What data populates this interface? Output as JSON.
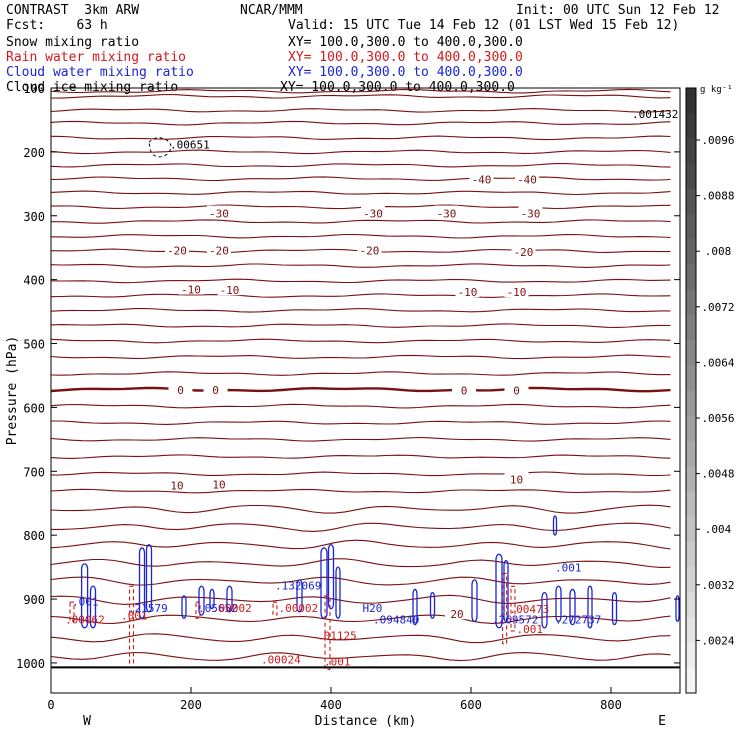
{
  "header": {
    "model": "CONTRAST  3km ARW",
    "source": "NCAR/MMM",
    "init": "Init: 00 UTC Sun 12 Feb 12",
    "fcst": "Fcst:    63 h",
    "valid": "Valid: 15 UTC Tue 14 Feb 12 (01 LST Wed 15 Feb 12)",
    "fields": [
      {
        "name": "Snow mixing ratio",
        "xy": "XY= 100.0,300.0 to 400.0,300.0",
        "color": "#000000"
      },
      {
        "name": "Rain water mixing ratio",
        "xy": "XY= 100.0,300.0 to 400.0,300.0",
        "color": "#d11a1a"
      },
      {
        "name": "Cloud water mixing ratio",
        "xy": "XY= 100.0,300.0 to 400.0,300.0",
        "color": "#1a25d6"
      },
      {
        "name": "Cloud ice mixing ratio",
        "xy": "XY= 100.0,300.0 to 400.0,300.0",
        "color": "#000000"
      }
    ]
  },
  "chart_data": {
    "type": "cross-section contour",
    "xlabel": "Distance (km)",
    "ylabel": "Pressure (hPa)",
    "x_ticks": [
      0,
      200,
      400,
      600,
      800
    ],
    "y_ticks": [
      100,
      200,
      300,
      400,
      500,
      600,
      700,
      800,
      900,
      1000
    ],
    "xlim": [
      0,
      895
    ],
    "ylim": [
      1045,
      100
    ],
    "x_end_labels": {
      "left": "W",
      "right": "E"
    },
    "colorbar": {
      "unit": "g kg⁻¹",
      "labels": [
        ".0096",
        ".0088",
        ".008",
        ".0072",
        ".0064",
        ".0056",
        ".0048",
        ".004",
        ".0032",
        ".0024"
      ]
    },
    "temperature_isotherm_labels": [
      {
        "text": "-40",
        "x": 615,
        "p": 242
      },
      {
        "text": "-40",
        "x": 680,
        "p": 242
      },
      {
        "text": "-30",
        "x": 240,
        "p": 295
      },
      {
        "text": "-30",
        "x": 460,
        "p": 295
      },
      {
        "text": "-30",
        "x": 565,
        "p": 295
      },
      {
        "text": "-30",
        "x": 685,
        "p": 295
      },
      {
        "text": "-20",
        "x": 180,
        "p": 353
      },
      {
        "text": "-20",
        "x": 240,
        "p": 353
      },
      {
        "text": "-20",
        "x": 455,
        "p": 353
      },
      {
        "text": "-20",
        "x": 675,
        "p": 355
      },
      {
        "text": "-10",
        "x": 200,
        "p": 414
      },
      {
        "text": "-10",
        "x": 255,
        "p": 415
      },
      {
        "text": "-10",
        "x": 595,
        "p": 418
      },
      {
        "text": "-10",
        "x": 665,
        "p": 418
      },
      {
        "text": "0",
        "x": 185,
        "p": 571
      },
      {
        "text": "0",
        "x": 235,
        "p": 571
      },
      {
        "text": "0",
        "x": 590,
        "p": 572
      },
      {
        "text": "0",
        "x": 665,
        "p": 572
      },
      {
        "text": "10",
        "x": 180,
        "p": 721
      },
      {
        "text": "10",
        "x": 240,
        "p": 719
      },
      {
        "text": "10",
        "x": 665,
        "p": 711
      },
      {
        "text": "20",
        "x": 580,
        "p": 922
      }
    ],
    "maxima_labels": [
      {
        "field": "snow",
        "text": ".001432",
        "x": 830,
        "p": 147
      },
      {
        "field": "cloud_ice",
        "text": ".00651",
        "x": 170,
        "p": 195
      },
      {
        "field": "cloud_water",
        "text": ".001",
        "x": 30,
        "p": 910
      },
      {
        "field": "rain",
        "text": ".00062",
        "x": 20,
        "p": 938
      },
      {
        "field": "rain",
        "text": ".001",
        "x": 100,
        "p": 932
      },
      {
        "field": "cloud_water",
        "text": ".21579",
        "x": 110,
        "p": 920
      },
      {
        "field": "cloud_water",
        "text": ".05652",
        "x": 210,
        "p": 920
      },
      {
        "field": "rain",
        "text": ".00002",
        "x": 230,
        "p": 920
      },
      {
        "field": "cloud_water",
        "text": ".132069",
        "x": 320,
        "p": 885
      },
      {
        "field": "rain",
        "text": ".00002",
        "x": 325,
        "p": 920
      },
      {
        "field": "rain",
        "text": ".01125",
        "x": 380,
        "p": 963
      },
      {
        "field": "cloud_water",
        "text": ".094840",
        "x": 460,
        "p": 938
      },
      {
        "field": "rain",
        "text": ".00024",
        "x": 300,
        "p": 1001
      },
      {
        "field": "rain",
        "text": ".001",
        "x": 390,
        "p": 1004
      },
      {
        "field": "cloud_water",
        "text": ".269572",
        "x": 630,
        "p": 938
      },
      {
        "field": "rain",
        "text": ".00473",
        "x": 655,
        "p": 922
      },
      {
        "field": "rain",
        "text": ".001",
        "x": 665,
        "p": 953
      },
      {
        "field": "cloud_water",
        "text": ".272737",
        "x": 720,
        "p": 938
      },
      {
        "field": "cloud_water",
        "text": ".001",
        "x": 720,
        "p": 857
      },
      {
        "field": "cloud_water",
        "text": "H20",
        "x": 445,
        "p": 920
      }
    ]
  },
  "colors": {
    "isotherm": "#7a1010",
    "rain": "#d11a1a",
    "cloud_water": "#1a25d6",
    "axis": "#000000"
  }
}
